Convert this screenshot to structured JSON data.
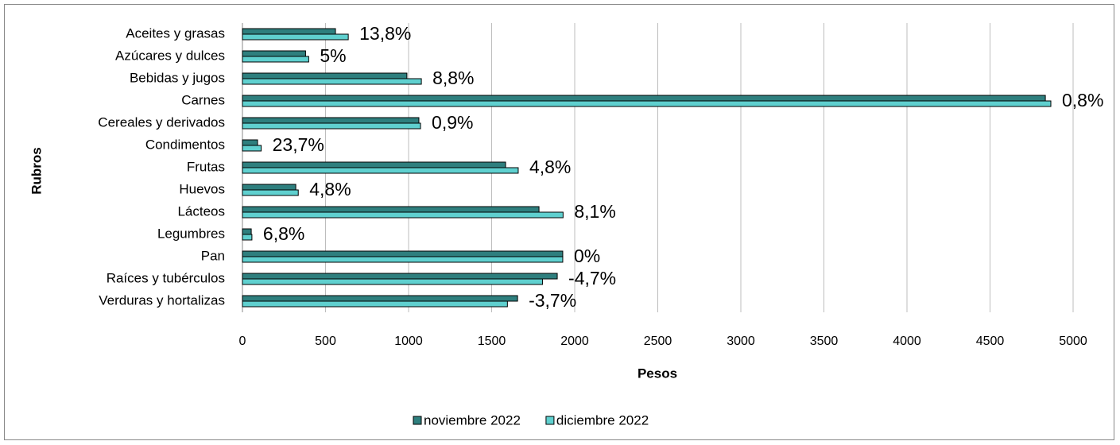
{
  "chart_data": {
    "type": "bar",
    "orientation": "horizontal",
    "x_label": "Pesos",
    "y_label": "Rubros",
    "categories": [
      "Aceites y grasas",
      "Azúcares y dulces",
      "Bebidas y jugos",
      "Carnes",
      "Cereales y derivados",
      "Condimentos",
      "Frutas",
      "Huevos",
      "Lácteos",
      "Legumbres",
      "Pan",
      "Raíces y tubérculos",
      "Verduras y hortalizas"
    ],
    "series": [
      {
        "name": "noviembre 2022",
        "color": "#2e7f7e",
        "values": [
          560,
          380,
          990,
          4833,
          1062,
          91,
          1584,
          321,
          1785,
          53,
          1928,
          1895,
          1656
        ]
      },
      {
        "name": "diciembre 2022",
        "color": "#5fd0cf",
        "values": [
          637,
          399,
          1077,
          4866,
          1072,
          113,
          1660,
          336,
          1930,
          57,
          1928,
          1806,
          1595
        ]
      }
    ],
    "annotations": [
      "13,8%",
      "5%",
      "8,8%",
      "0,8%",
      "0,9%",
      "23,7%",
      "4,8%",
      "4,8%",
      "8,1%",
      "6,8%",
      "0%",
      "-4,7%",
      "-3,7%"
    ],
    "xlim": [
      0,
      5000
    ],
    "xticks": [
      0,
      500,
      1000,
      1500,
      2000,
      2500,
      3000,
      3500,
      4000,
      4500,
      5000
    ],
    "grid": true,
    "legend": "bottom"
  }
}
